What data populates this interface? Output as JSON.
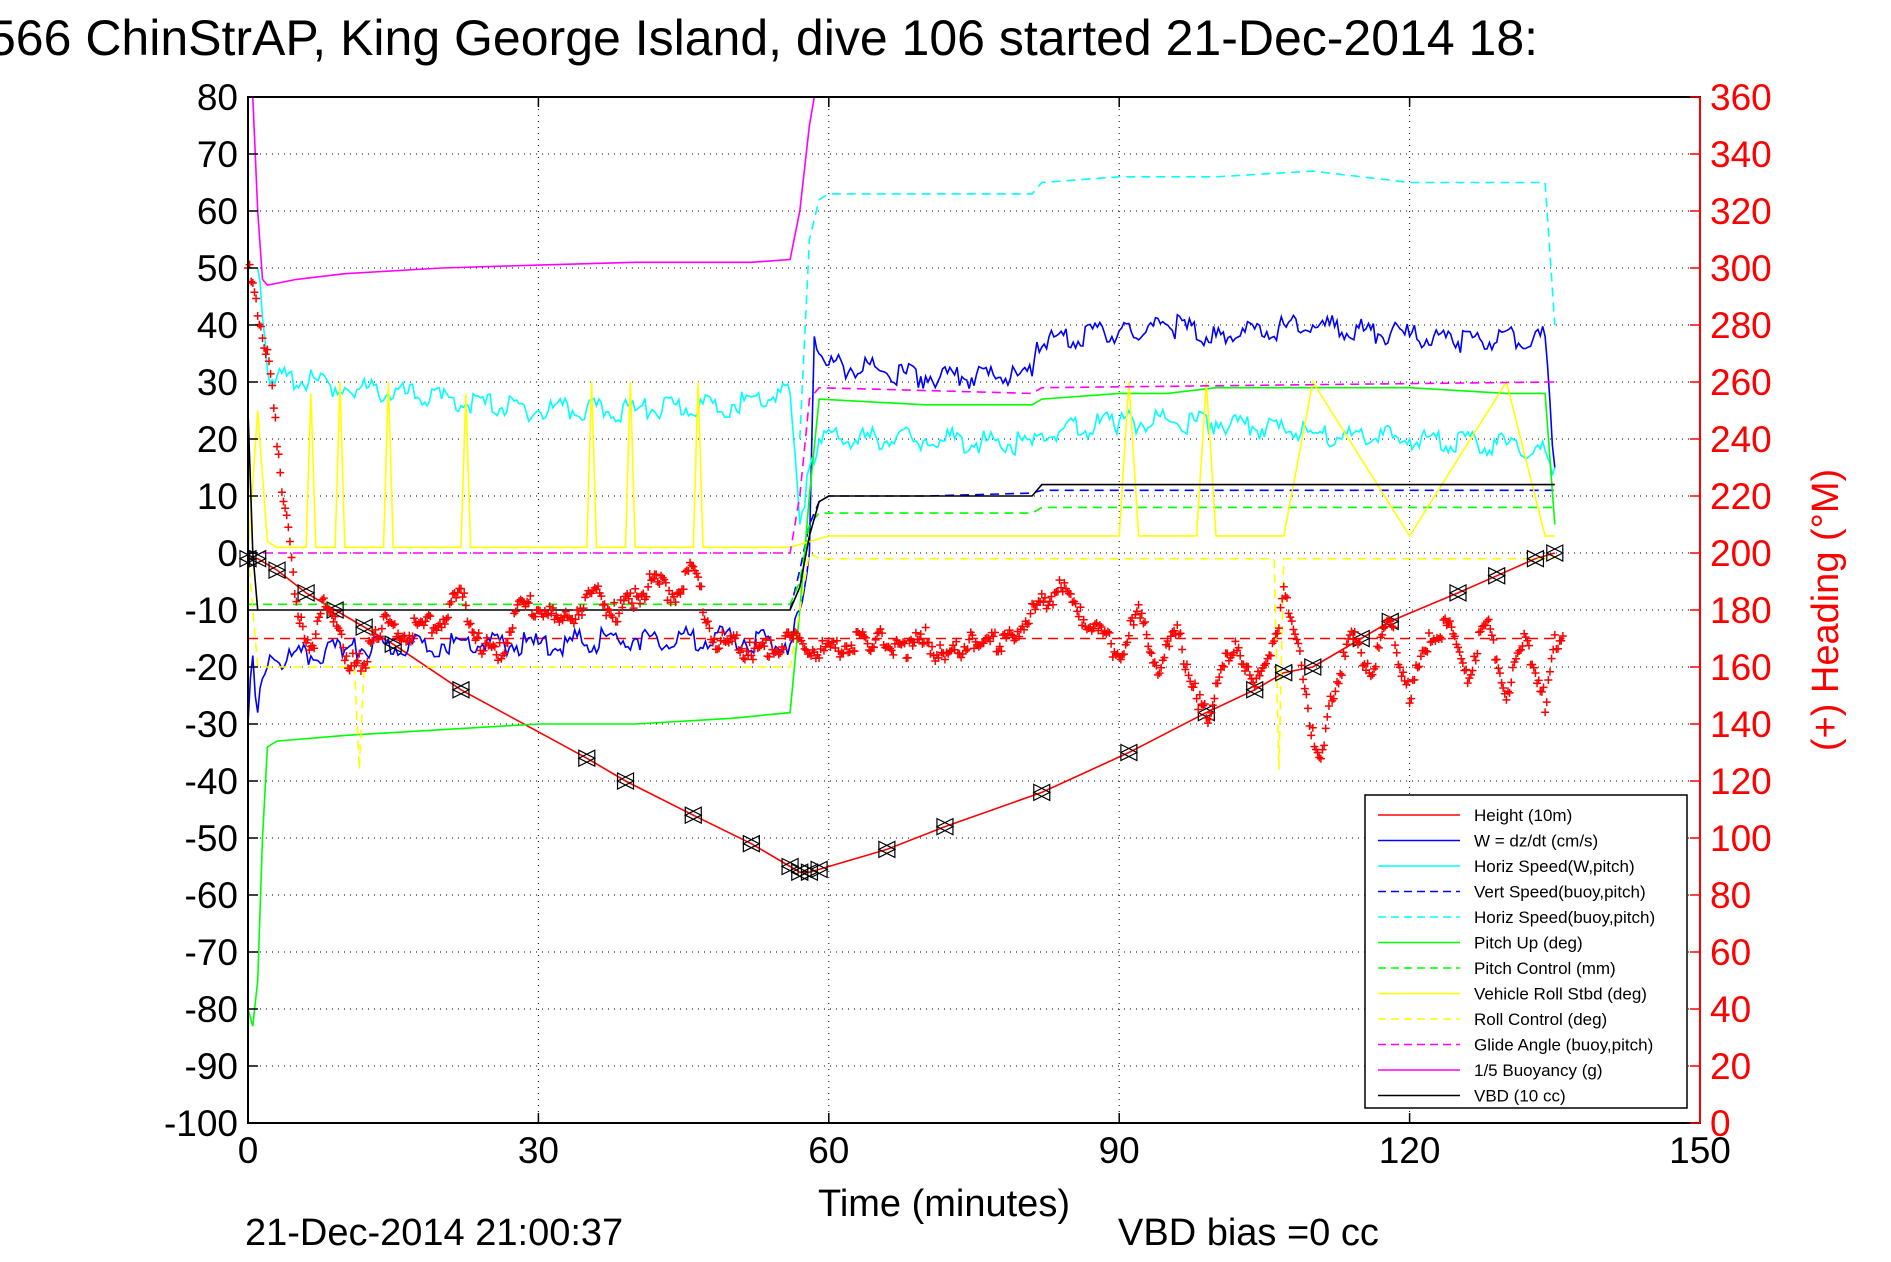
{
  "page": {
    "title": "566 ChinStrAP, King George Island, dive 106 started 21-Dec-2014 18:",
    "timestamp": "21-Dec-2014 21:00:37",
    "vbd_bias": "VBD bias =0 cc"
  },
  "chart_data": {
    "type": "line",
    "title": "566 ChinStrAP, King George Island, dive 106 started 21-Dec-2014 18:",
    "xlabel": "Time (minutes)",
    "ylabel": "",
    "y2label": "(+) Heading (°M)",
    "xlim": [
      0,
      150
    ],
    "ylim": [
      -100,
      80
    ],
    "y2lim": [
      0,
      360
    ],
    "xticks": [
      "0",
      "30",
      "60",
      "90",
      "120",
      "150"
    ],
    "yticks": [
      "80",
      "70",
      "60",
      "50",
      "40",
      "30",
      "20",
      "10",
      "0",
      "-10",
      "-20",
      "-30",
      "-40",
      "-50",
      "-60",
      "-70",
      "-80",
      "-90",
      "-100"
    ],
    "y2ticks": [
      "360",
      "340",
      "320",
      "300",
      "280",
      "260",
      "240",
      "220",
      "200",
      "180",
      "160",
      "140",
      "120",
      "100",
      "80",
      "60",
      "40",
      "20",
      "0"
    ],
    "grid": true,
    "legend_position": "bottom-right",
    "colors": {
      "height": "#ff0000",
      "w": "#0000ff",
      "horiz": "#00ffff",
      "pitch": "#00ff00",
      "roll": "#ffff00",
      "glide": "#ff00ff",
      "vbd": "#000000",
      "heading": "#ff0000"
    },
    "series": [
      {
        "name": "Height (10m)",
        "color": "#ff0000",
        "style": "solid",
        "x": [
          0,
          1,
          3,
          6,
          9,
          12,
          15,
          22,
          35,
          39,
          46,
          52,
          56,
          57,
          58,
          59,
          66,
          72,
          82,
          91,
          99,
          104,
          107,
          110,
          115,
          118,
          125,
          129,
          133,
          135
        ],
        "y": [
          -1,
          -1,
          -3,
          -7,
          -10,
          -13,
          -16,
          -24,
          -36,
          -40,
          -46,
          -51,
          -55,
          -56,
          -56,
          -55.5,
          -52,
          -48,
          -42,
          -35,
          -28,
          -24,
          -21,
          -20,
          -15,
          -12,
          -7,
          -4,
          -1,
          0
        ]
      },
      {
        "name": "W = dz/dt (cm/s)",
        "color": "#0000ff",
        "style": "solid",
        "x": [
          0,
          0.5,
          1,
          1.5,
          2,
          3,
          10,
          20,
          30,
          40,
          50,
          56,
          57,
          58,
          58.5,
          60,
          70,
          81,
          81.5,
          90,
          95,
          100,
          110,
          120,
          125,
          134,
          135
        ],
        "y": [
          -30,
          -18,
          -28,
          -22,
          -20,
          -19,
          -17,
          -16,
          -16,
          -15,
          -15,
          -16,
          -10,
          0,
          38,
          33,
          31,
          31,
          37,
          39,
          40,
          38,
          40,
          38,
          37,
          38,
          15
        ]
      },
      {
        "name": "Horiz Speed(W,pitch)",
        "color": "#00ffff",
        "style": "solid",
        "x": [
          1,
          2,
          3,
          10,
          20,
          30,
          40,
          50,
          56,
          57,
          58,
          59,
          70,
          81,
          82,
          90,
          100,
          110,
          120,
          130,
          134,
          135
        ],
        "y": [
          50,
          32,
          31,
          29,
          27,
          25,
          25,
          26,
          28,
          5,
          15,
          20,
          20,
          19,
          21,
          23,
          23,
          21,
          20,
          19,
          18,
          15
        ]
      },
      {
        "name": "Vert Speed(buoy,pitch)",
        "color": "#0000ff",
        "style": "dashed",
        "x": [
          56,
          57,
          58,
          59,
          60,
          70,
          81,
          82,
          90,
          100,
          110,
          120,
          130,
          134,
          135
        ],
        "y": [
          -10,
          -3,
          5,
          9,
          10,
          10,
          10.5,
          11,
          11,
          11,
          11,
          11,
          11,
          11,
          11
        ]
      },
      {
        "name": "Horiz Speed(buoy,pitch)",
        "color": "#00ffff",
        "style": "dashed",
        "x": [
          57,
          58,
          59,
          60,
          70,
          81,
          82,
          90,
          100,
          110,
          120,
          130,
          134,
          135
        ],
        "y": [
          20,
          55,
          62,
          63,
          63,
          63,
          65,
          66,
          66,
          67,
          65,
          65,
          65,
          40
        ]
      },
      {
        "name": "Pitch Up (deg)",
        "color": "#00ff00",
        "style": "solid",
        "x": [
          0,
          0.5,
          1,
          1.5,
          2,
          3,
          10,
          20,
          30,
          40,
          50,
          56,
          57,
          58,
          59,
          70,
          81,
          82,
          90,
          95,
          100,
          110,
          120,
          130,
          134,
          135
        ],
        "y": [
          -80,
          -83,
          -75,
          -50,
          -34,
          -33,
          -32,
          -31,
          -30,
          -30,
          -29,
          -28,
          -10,
          10,
          27,
          26,
          26,
          27,
          28,
          28,
          29,
          29,
          29,
          28,
          28,
          5
        ]
      },
      {
        "name": "Pitch Control (mm)",
        "color": "#00ff00",
        "style": "dashed",
        "x": [
          0,
          1,
          2,
          56,
          57,
          58,
          59,
          81,
          82,
          135
        ],
        "y": [
          -9,
          -9,
          -9,
          -9,
          -5,
          5,
          7,
          7,
          8,
          8
        ]
      },
      {
        "name": "Vehicle Roll Stbd (deg)",
        "color": "#ffff00",
        "style": "solid",
        "x": [
          0,
          1,
          2,
          3,
          6,
          6.5,
          7,
          8,
          9,
          9.5,
          10,
          14,
          14.5,
          15,
          22,
          22.5,
          23,
          35,
          35.5,
          36,
          39,
          39.5,
          40,
          46,
          46.5,
          47,
          56,
          58,
          60,
          81,
          82,
          90,
          91,
          92,
          98,
          99,
          100,
          107,
          110,
          120,
          130,
          134,
          135
        ],
        "y": [
          0,
          25,
          2,
          1,
          1,
          28,
          1,
          1,
          1,
          30,
          1,
          1,
          30,
          1,
          1,
          28,
          1,
          1,
          30,
          1,
          1,
          30,
          1,
          1,
          30,
          1,
          1,
          2,
          3,
          3,
          3,
          3,
          30,
          3,
          3,
          30,
          3,
          3,
          30,
          3,
          30,
          3,
          3
        ]
      },
      {
        "name": "Roll Control (deg)",
        "color": "#ffff00",
        "style": "dashed",
        "x": [
          0,
          1,
          11,
          11.5,
          12,
          56,
          58,
          59,
          81,
          82,
          106,
          106.5,
          107,
          135
        ],
        "y": [
          0,
          -20,
          -20,
          -38,
          -20,
          -20,
          0,
          -1,
          -1,
          -1,
          -1,
          -38,
          -1,
          -1
        ]
      },
      {
        "name": "Glide Angle (buoy,pitch)",
        "color": "#ff00ff",
        "style": "dashed",
        "x": [
          0,
          56,
          57,
          58,
          59,
          81,
          82,
          135
        ],
        "y": [
          0,
          0,
          10,
          27,
          29,
          28,
          29,
          30
        ]
      },
      {
        "name": "1/5 Buoyancy (g)",
        "color": "#ff00ff",
        "style": "solid",
        "x": [
          0.5,
          1,
          1.5,
          2,
          5,
          10,
          20,
          30,
          40,
          50,
          52,
          56,
          57,
          58,
          58.5
        ],
        "y": [
          80,
          60,
          48,
          47,
          48,
          49,
          50,
          50.5,
          51,
          51,
          51,
          51.5,
          60,
          75,
          80
        ]
      },
      {
        "name": "VBD (10 cc)",
        "color": "#000000",
        "style": "solid",
        "x": [
          0,
          0.5,
          1,
          2,
          56,
          57,
          58,
          59,
          60,
          81,
          82,
          134,
          135
        ],
        "y": [
          25,
          0,
          -10,
          -10,
          -10,
          -6,
          3,
          9,
          10,
          10,
          12,
          12,
          12
        ]
      }
    ],
    "heading": {
      "name": "(+) Heading (°M)",
      "axis": "right",
      "marker": "+",
      "color": "#ff0000",
      "x": [
        0,
        1,
        2,
        3,
        4,
        5,
        6,
        7,
        8,
        9,
        10,
        11,
        12,
        13,
        14,
        16,
        18,
        20,
        22,
        24,
        26,
        28,
        30,
        32,
        34,
        36,
        38,
        40,
        42,
        44,
        46,
        48,
        50,
        52,
        54,
        56,
        58,
        60,
        62,
        65,
        68,
        70,
        72,
        75,
        78,
        80,
        82,
        84,
        86,
        88,
        90,
        92,
        94,
        96,
        98,
        99,
        100,
        102,
        104,
        106,
        107,
        108,
        110,
        111,
        112,
        114,
        116,
        118,
        120,
        122,
        124,
        126,
        128,
        130,
        132,
        134,
        135,
        136
      ],
      "y": [
        300,
        285,
        270,
        240,
        210,
        185,
        165,
        170,
        185,
        175,
        165,
        160,
        162,
        170,
        175,
        172,
        174,
        177,
        185,
        168,
        165,
        180,
        182,
        175,
        180,
        186,
        178,
        185,
        190,
        186,
        195,
        170,
        168,
        165,
        167,
        170,
        168,
        165,
        168,
        170,
        166,
        170,
        162,
        170,
        168,
        175,
        182,
        188,
        178,
        172,
        165,
        178,
        160,
        172,
        150,
        142,
        152,
        170,
        152,
        170,
        185,
        175,
        135,
        128,
        150,
        170,
        160,
        175,
        150,
        170,
        175,
        158,
        176,
        150,
        170,
        148,
        168,
        175
      ]
    },
    "reference_lines": [
      {
        "axis": "right",
        "value": 170,
        "color": "#ff0000",
        "style": "dashed"
      }
    ]
  },
  "legend": {
    "items": [
      {
        "label": "Height (10m)",
        "color": "#ff0000",
        "dash": false
      },
      {
        "label": "W = dz/dt (cm/s)",
        "color": "#0000ff",
        "dash": false
      },
      {
        "label": "Horiz Speed(W,pitch)",
        "color": "#00ffff",
        "dash": false
      },
      {
        "label": "Vert Speed(buoy,pitch)",
        "color": "#0000ff",
        "dash": true
      },
      {
        "label": "Horiz Speed(buoy,pitch)",
        "color": "#00ffff",
        "dash": true
      },
      {
        "label": "Pitch Up (deg)",
        "color": "#00ff00",
        "dash": false
      },
      {
        "label": "Pitch Control (mm)",
        "color": "#00ff00",
        "dash": true
      },
      {
        "label": "Vehicle Roll Stbd (deg)",
        "color": "#ffff00",
        "dash": false
      },
      {
        "label": "Roll Control (deg)",
        "color": "#ffff00",
        "dash": true
      },
      {
        "label": "Glide Angle (buoy,pitch)",
        "color": "#ff00ff",
        "dash": true
      },
      {
        "label": "1/5 Buoyancy (g)",
        "color": "#ff00ff",
        "dash": false
      },
      {
        "label": "VBD (10 cc)",
        "color": "#000000",
        "dash": false
      }
    ]
  }
}
